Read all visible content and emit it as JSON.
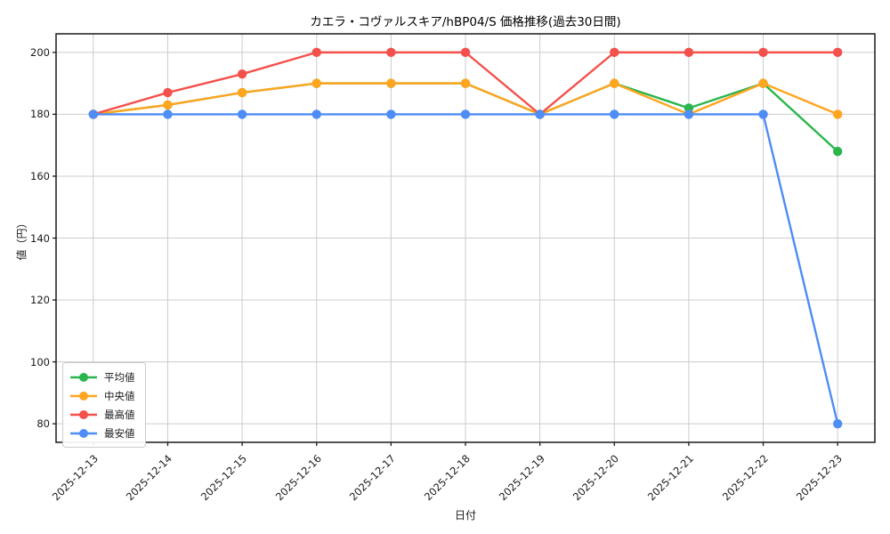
{
  "chart_data": {
    "type": "line",
    "title": "カエラ・コヴァルスキア/hBP04/S 価格推移(過去30日間)",
    "xlabel": "日付",
    "ylabel": "値（円）",
    "categories": [
      "2025-12-13",
      "2025-12-14",
      "2025-12-15",
      "2025-12-16",
      "2025-12-17",
      "2025-12-18",
      "2025-12-19",
      "2025-12-20",
      "2025-12-21",
      "2025-12-22",
      "2025-12-23"
    ],
    "series": [
      {
        "name": "平均値",
        "color": "#2bb54d",
        "values": [
          180,
          183,
          187,
          190,
          190,
          190,
          180,
          190,
          182,
          190,
          168
        ]
      },
      {
        "name": "中央値",
        "color": "#ffa51f",
        "values": [
          180,
          183,
          187,
          190,
          190,
          190,
          180,
          190,
          180,
          190,
          180
        ]
      },
      {
        "name": "最高値",
        "color": "#f4514c",
        "values": [
          180,
          187,
          193,
          200,
          200,
          200,
          180,
          200,
          200,
          200,
          200
        ]
      },
      {
        "name": "最安値",
        "color": "#4e8df5",
        "values": [
          180,
          180,
          180,
          180,
          180,
          180,
          180,
          180,
          180,
          180,
          80
        ]
      }
    ],
    "ylim": [
      74,
      206
    ],
    "yticks": [
      80,
      100,
      120,
      140,
      160,
      180,
      200
    ],
    "grid": true,
    "legend_position": "lower left",
    "grid_color": "#cccccc",
    "spine_color": "#1a1a1a"
  }
}
